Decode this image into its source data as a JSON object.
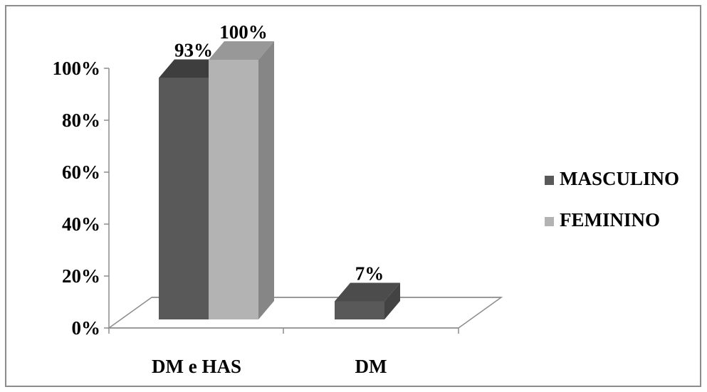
{
  "chart_data": {
    "type": "bar",
    "categories": [
      "DM e HAS",
      "DM"
    ],
    "series": [
      {
        "name": "MASCULINO",
        "values": [
          93,
          7
        ],
        "labels": [
          "93%",
          "7%"
        ],
        "color": "#595959"
      },
      {
        "name": "FEMININO",
        "values": [
          100,
          0
        ],
        "labels": [
          "100%",
          ""
        ],
        "color": "#b3b3b3"
      }
    ],
    "y_ticks": [
      "0%",
      "20%",
      "40%",
      "60%",
      "80%",
      "100%"
    ],
    "ylim": [
      0,
      100
    ],
    "legend_position": "right",
    "grid": false,
    "style": "3d-column"
  }
}
